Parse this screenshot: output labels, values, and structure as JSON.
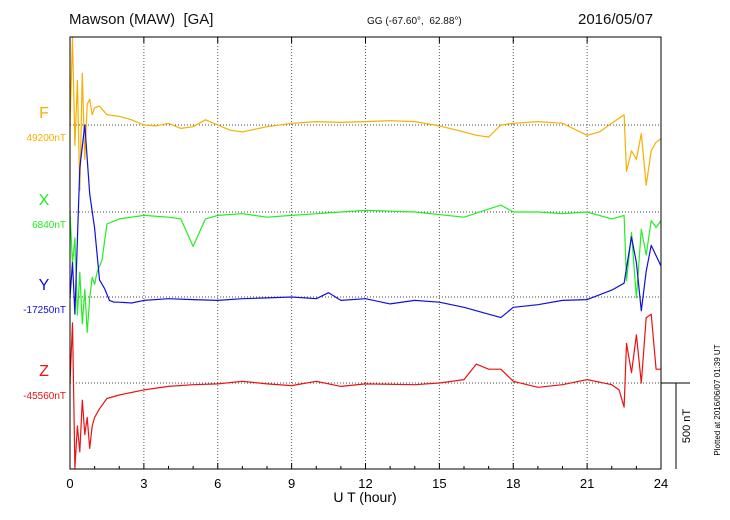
{
  "header": {
    "station": "Mawson (MAW)  [GA]",
    "coords": "GG (-67.60°,  62.88°)",
    "date": "2016/05/07"
  },
  "footer_note": "Plotted at 2016/06/07 01:39 UT",
  "scale_bar_label": "500 nT",
  "colors": {
    "F": "#f5b000",
    "X": "#22ee22",
    "Y": "#1010dd",
    "Z": "#ee1111"
  },
  "chart_data": {
    "type": "line",
    "title": "Mawson (MAW)  [GA]",
    "xlabel": "U T (hour)",
    "xlim": [
      0,
      24
    ],
    "xticks": [
      "0",
      "3",
      "6",
      "9",
      "12",
      "15",
      "18",
      "21",
      "24"
    ],
    "grid": true,
    "scale_nT": 500,
    "series": [
      {
        "name": "F",
        "baseline_label": "49200nT",
        "color": "#f5b000",
        "x": [
          0,
          0.1,
          0.2,
          0.3,
          0.4,
          0.5,
          0.6,
          0.7,
          0.8,
          0.9,
          1.0,
          1.2,
          1.5,
          2.0,
          2.5,
          3.0,
          3.5,
          4.0,
          4.5,
          5.0,
          5.5,
          6.0,
          6.5,
          7.0,
          7.5,
          8.0,
          9.0,
          10.0,
          11.0,
          12.0,
          13.0,
          14.0,
          15.0,
          16.0,
          16.5,
          17.0,
          17.5,
          18.0,
          19.0,
          20.0,
          21.0,
          21.5,
          22.0,
          22.5,
          22.6,
          22.8,
          23.0,
          23.2,
          23.4,
          23.6,
          23.8,
          24.0
        ],
        "y": [
          0,
          510,
          -120,
          260,
          -380,
          300,
          -200,
          120,
          150,
          60,
          100,
          110,
          60,
          50,
          30,
          0,
          -5,
          10,
          -20,
          -10,
          30,
          0,
          -30,
          -40,
          -25,
          -10,
          10,
          20,
          15,
          20,
          25,
          20,
          -5,
          -40,
          -60,
          -70,
          0,
          10,
          20,
          10,
          -60,
          -40,
          10,
          60,
          -270,
          -150,
          -200,
          -50,
          -350,
          -150,
          -100,
          -80
        ]
      },
      {
        "name": "X",
        "baseline_label": "6840nT",
        "color": "#22ee22",
        "x": [
          0,
          0.1,
          0.2,
          0.3,
          0.4,
          0.5,
          0.6,
          0.7,
          0.8,
          0.9,
          1.0,
          1.1,
          1.3,
          1.5,
          2.0,
          3.0,
          4.0,
          4.5,
          5.0,
          5.5,
          6.0,
          7.0,
          8.0,
          9.0,
          10.0,
          11.0,
          12.0,
          14.0,
          16.0,
          17.5,
          18.0,
          19.0,
          20.0,
          21.0,
          22.0,
          22.5,
          22.6,
          22.8,
          23.0,
          23.2,
          23.4,
          23.6,
          23.8,
          24.0
        ],
        "y": [
          0,
          -300,
          -150,
          -600,
          -350,
          -650,
          -450,
          -700,
          -500,
          -380,
          -420,
          -350,
          -280,
          -70,
          -40,
          -20,
          -30,
          -40,
          -200,
          -40,
          -20,
          -10,
          -30,
          -20,
          -10,
          0,
          10,
          0,
          -30,
          40,
          0,
          0,
          -10,
          0,
          -40,
          -20,
          -400,
          -120,
          -500,
          -100,
          -250,
          -50,
          -90,
          -50
        ]
      },
      {
        "name": "Y",
        "baseline_label": "-17250nT",
        "color": "#1010dd",
        "x": [
          0,
          0.1,
          0.2,
          0.4,
          0.6,
          0.8,
          1.0,
          1.2,
          1.4,
          1.6,
          1.8,
          2.0,
          2.5,
          3.0,
          4.0,
          5.0,
          6.0,
          7.0,
          8.0,
          9.0,
          10.0,
          10.5,
          11.0,
          12.0,
          13.0,
          14.0,
          15.0,
          16.0,
          17.0,
          17.5,
          18.0,
          19.0,
          20.0,
          21.0,
          22.0,
          22.5,
          22.8,
          23.0,
          23.2,
          23.4,
          23.6,
          24.0
        ],
        "y": [
          0,
          200,
          -100,
          750,
          1000,
          600,
          400,
          100,
          50,
          -20,
          -30,
          -30,
          -35,
          -20,
          -10,
          -15,
          -20,
          -10,
          -5,
          0,
          -10,
          25,
          -20,
          -10,
          -40,
          -20,
          -30,
          -60,
          -100,
          -120,
          -60,
          -45,
          -20,
          -15,
          40,
          80,
          350,
          200,
          -80,
          150,
          300,
          180
        ]
      },
      {
        "name": "Z",
        "baseline_label": "-45560nT",
        "color": "#ee1111",
        "x": [
          0,
          0.1,
          0.2,
          0.3,
          0.4,
          0.5,
          0.6,
          0.7,
          0.8,
          0.9,
          1.0,
          1.2,
          1.5,
          2.0,
          3.0,
          4.0,
          5.0,
          6.0,
          7.0,
          8.0,
          9.0,
          10.0,
          11.0,
          12.0,
          14.0,
          15.0,
          16.0,
          16.5,
          17.0,
          17.5,
          18.0,
          19.0,
          20.0,
          21.0,
          22.0,
          22.3,
          22.5,
          22.6,
          22.8,
          23.0,
          23.2,
          23.4,
          23.6,
          23.8,
          24.0
        ],
        "y": [
          0,
          350,
          -600,
          -250,
          -400,
          -100,
          -300,
          -200,
          -380,
          -250,
          -200,
          -150,
          -90,
          -70,
          -40,
          -20,
          -10,
          -5,
          10,
          -5,
          -15,
          10,
          -20,
          -5,
          -10,
          0,
          20,
          110,
          80,
          80,
          10,
          -25,
          -10,
          20,
          -10,
          -40,
          -140,
          230,
          60,
          280,
          0,
          380,
          400,
          80,
          80
        ]
      }
    ]
  }
}
